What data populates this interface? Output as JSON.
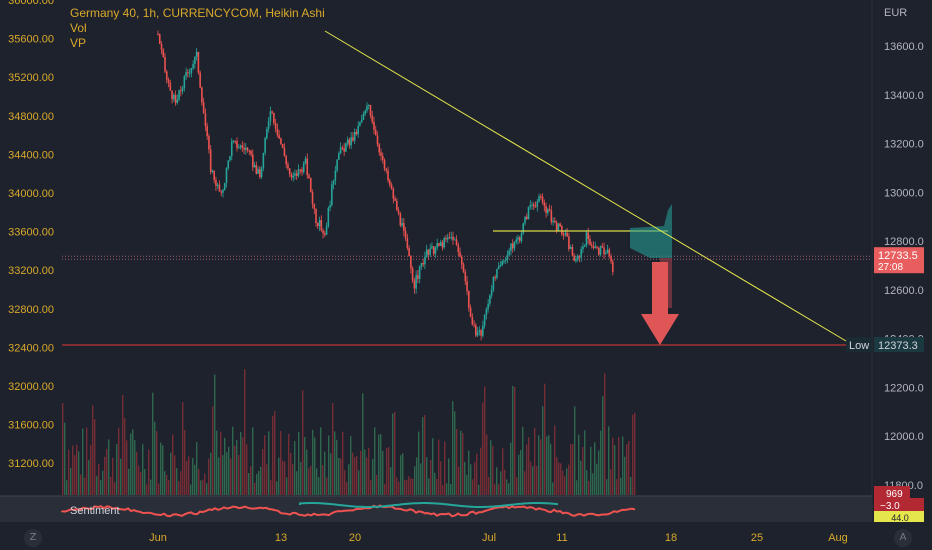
{
  "header": {
    "symbol_line": "Germany 40, 1h, CURRENCYCOM, Heikin Ashi",
    "indicator_1": "Vol",
    "indicator_2": "VP"
  },
  "chart_data": {
    "type": "candlestick",
    "title": "Germany 40, 1h, CURRENCYCOM, Heikin Ashi",
    "currency_label": "EUR",
    "left_axis": {
      "ticks": [
        "36000.00",
        "35600.00",
        "35200.00",
        "34800.00",
        "34400.00",
        "34000.00",
        "33600.00",
        "33200.00",
        "32800.00",
        "32400.00",
        "32000.00",
        "31600.00",
        "31200.00"
      ],
      "range": [
        30800,
        36000
      ]
    },
    "right_axis": {
      "ticks": [
        "13600.0",
        "13400.0",
        "13200.0",
        "13000.0",
        "12800.0",
        "12600.0",
        "12400.0",
        "12200.0",
        "12000.0",
        "11800.0"
      ],
      "range": [
        11800,
        13600
      ]
    },
    "x_axis": {
      "labels": [
        "Jun",
        "13",
        "20",
        "Jul",
        "11",
        "18",
        "25",
        "Aug"
      ]
    },
    "price_path": [
      [
        0.0,
        13650
      ],
      [
        0.5,
        13460
      ],
      [
        1.0,
        13360
      ],
      [
        1.6,
        13480
      ],
      [
        2.2,
        13560
      ],
      [
        3.0,
        13100
      ],
      [
        3.6,
        12980
      ],
      [
        4.2,
        13200
      ],
      [
        5.0,
        13180
      ],
      [
        5.8,
        13060
      ],
      [
        6.4,
        13350
      ],
      [
        7.0,
        13200
      ],
      [
        7.6,
        13050
      ],
      [
        8.4,
        13120
      ],
      [
        9.0,
        12890
      ],
      [
        9.5,
        12830
      ],
      [
        10.2,
        13150
      ],
      [
        11.2,
        13230
      ],
      [
        12.0,
        13360
      ],
      [
        12.8,
        13120
      ],
      [
        13.4,
        12980
      ],
      [
        14.0,
        12830
      ],
      [
        14.6,
        12620
      ],
      [
        15.2,
        12740
      ],
      [
        16.0,
        12780
      ],
      [
        16.8,
        12820
      ],
      [
        17.4,
        12690
      ],
      [
        17.9,
        12440
      ],
      [
        18.4,
        12420
      ],
      [
        19.0,
        12620
      ],
      [
        19.8,
        12740
      ],
      [
        20.6,
        12820
      ],
      [
        21.2,
        12950
      ],
      [
        21.8,
        12970
      ],
      [
        22.6,
        12870
      ],
      [
        23.2,
        12820
      ],
      [
        23.8,
        12710
      ],
      [
        24.4,
        12820
      ],
      [
        25.0,
        12760
      ],
      [
        25.6,
        12760
      ],
      [
        26.0,
        12650
      ]
    ],
    "current_price": "12733.5",
    "countdown": "27:08",
    "low": {
      "label": "Low",
      "value": "12373.3"
    },
    "trendline": {
      "from": [
        "17 Jun",
        13670
      ],
      "to": [
        "1 Aug",
        12373.3
      ]
    },
    "volume_axis_label": "969",
    "sentiment": {
      "label": "Sentiment",
      "value_1": "−3.0",
      "value_2": "44.0"
    },
    "corner_left": "Z",
    "corner_right": "A",
    "colors": {
      "up": "#26a69a",
      "down": "#ef5350",
      "trendline": "#e6e64c",
      "support": "#e53935",
      "arrow": "#e05555",
      "profile": "#26a69a",
      "axis_text": "#d9a92a"
    }
  }
}
